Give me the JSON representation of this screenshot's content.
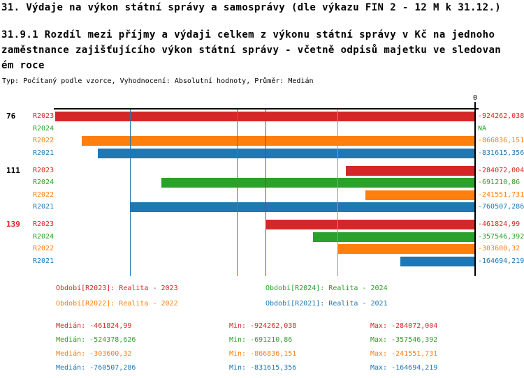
{
  "header": {
    "title": "31. Výdaje na výkon státní správy a samosprávy (dle výkazu FIN 2 - 12 M k 31.12.)",
    "subtitle": "31.9.1 Rozdíl mezi příjmy a výdaji celkem z výkonu státní správy v Kč na jednoho\nzaměstnance zajišťujícího výkon státní správy - včetně odpisů majetku ve sledovan\ném roce",
    "meta": "Typ: Počítaný podle vzorce, Vyhodnocení: Absolutní hodnoty, Průměr: Medián"
  },
  "chart_data": {
    "type": "bar",
    "orientation": "horizontal",
    "axis": {
      "zero_label": "0",
      "x_range": [
        -928000,
        0
      ],
      "zero_side": "right"
    },
    "series_colors": {
      "R2023": "#d62728",
      "R2024": "#2ca02c",
      "R2022": "#ff7f0e",
      "R2021": "#1f77b4"
    },
    "groups": [
      {
        "label": "76",
        "label_color": "#000000",
        "rows": [
          {
            "series": "R2023",
            "value": -924262.038,
            "display": "-924262,038"
          },
          {
            "series": "R2024",
            "value": null,
            "display": "NA"
          },
          {
            "series": "R2022",
            "value": -866836.151,
            "display": "-866836,151"
          },
          {
            "series": "R2021",
            "value": -831615.356,
            "display": "-831615,356"
          }
        ]
      },
      {
        "label": "111",
        "label_color": "#000000",
        "rows": [
          {
            "series": "R2023",
            "value": -284072.004,
            "display": "-284072,004"
          },
          {
            "series": "R2024",
            "value": -691210.86,
            "display": "-691210,86"
          },
          {
            "series": "R2022",
            "value": -241551.731,
            "display": "-241551,731"
          },
          {
            "series": "R2021",
            "value": -760507.286,
            "display": "-760507,286"
          }
        ]
      },
      {
        "label": "139",
        "label_color": "#d62728",
        "rows": [
          {
            "series": "R2023",
            "value": -461824.99,
            "display": "-461824,99"
          },
          {
            "series": "R2024",
            "value": -357546.392,
            "display": "-357546,392"
          },
          {
            "series": "R2022",
            "value": -303600.32,
            "display": "-303600,32"
          },
          {
            "series": "R2021",
            "value": -164694.219,
            "display": "-164694,219"
          }
        ]
      }
    ],
    "median_lines": [
      {
        "series": "R2023",
        "value": -461824.99
      },
      {
        "series": "R2024",
        "value": -524378.626
      },
      {
        "series": "R2022",
        "value": -303600.32
      },
      {
        "series": "R2021",
        "value": -760507.286
      }
    ]
  },
  "legend": {
    "items": [
      {
        "series": "R2023",
        "label": "Období[R2023]: Realita - 2023",
        "color": "#d62728"
      },
      {
        "series": "R2024",
        "label": "Období[R2024]: Realita - 2024",
        "color": "#2ca02c"
      },
      {
        "series": "R2022",
        "label": "Období[R2022]: Realita - 2022",
        "color": "#ff7f0e"
      },
      {
        "series": "R2021",
        "label": "Období[R2021]: Realita - 2021",
        "color": "#1f77b4"
      }
    ]
  },
  "stats": {
    "median_label": "Medián",
    "min_label": "Min",
    "max_label": "Max",
    "rows": [
      {
        "series": "R2023",
        "color": "#d62728",
        "median": "-461824,99",
        "min": "-924262,038",
        "max": "-284072,004"
      },
      {
        "series": "R2024",
        "color": "#2ca02c",
        "median": "-524378,626",
        "min": "-691210,86",
        "max": "-357546,392"
      },
      {
        "series": "R2022",
        "color": "#ff7f0e",
        "median": "-303600,32",
        "min": "-866836,151",
        "max": "-241551,731"
      },
      {
        "series": "R2021",
        "color": "#1f77b4",
        "median": "-760507,286",
        "min": "-831615,356",
        "max": "-164694,219"
      }
    ]
  }
}
